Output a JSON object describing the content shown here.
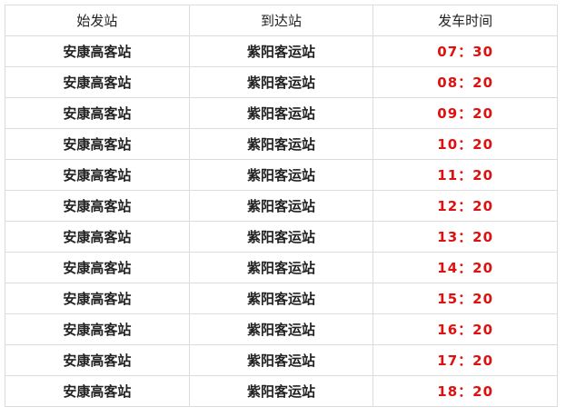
{
  "headers": [
    "始发站",
    "到达站",
    "发车时间"
  ],
  "colors": {
    "time": "#e01010",
    "border": "#dcdcdc"
  },
  "rows": [
    {
      "from": "安康高客站",
      "to": "紫阳客运站",
      "time": "07：30"
    },
    {
      "from": "安康高客站",
      "to": "紫阳客运站",
      "time": "08：20"
    },
    {
      "from": "安康高客站",
      "to": "紫阳客运站",
      "time": "09：20"
    },
    {
      "from": "安康高客站",
      "to": "紫阳客运站",
      "time": "10：20"
    },
    {
      "from": "安康高客站",
      "to": "紫阳客运站",
      "time": "11：20"
    },
    {
      "from": "安康高客站",
      "to": "紫阳客运站",
      "time": "12：20"
    },
    {
      "from": "安康高客站",
      "to": "紫阳客运站",
      "time": "13：20"
    },
    {
      "from": "安康高客站",
      "to": "紫阳客运站",
      "time": "14：20"
    },
    {
      "from": "安康高客站",
      "to": "紫阳客运站",
      "time": "15：20"
    },
    {
      "from": "安康高客站",
      "to": "紫阳客运站",
      "time": "16：20"
    },
    {
      "from": "安康高客站",
      "to": "紫阳客运站",
      "time": "17：20"
    },
    {
      "from": "安康高客站",
      "to": "紫阳客运站",
      "time": "18：20"
    }
  ]
}
